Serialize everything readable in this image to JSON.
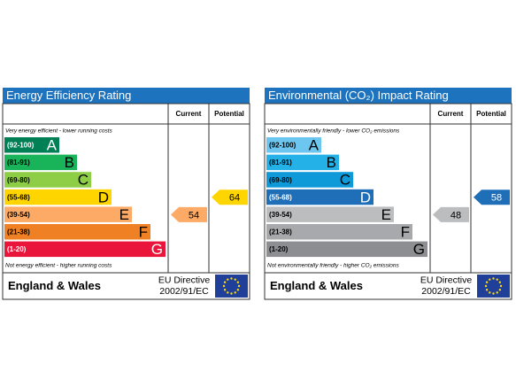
{
  "panels": [
    {
      "title": "Energy Efficiency Rating",
      "headers": [
        "Current",
        "Potential"
      ],
      "top_note": "Very energy efficient - lower running costs",
      "bottom_note": "Not energy efficient - higher running costs",
      "bands": [
        {
          "range": "(92-100)",
          "letter": "A",
          "color": "#008054"
        },
        {
          "range": "(81-91)",
          "letter": "B",
          "color": "#19b459"
        },
        {
          "range": "(69-80)",
          "letter": "C",
          "color": "#8dce46"
        },
        {
          "range": "(55-68)",
          "letter": "D",
          "color": "#ffd500"
        },
        {
          "range": "(39-54)",
          "letter": "E",
          "color": "#fcaa65"
        },
        {
          "range": "(21-38)",
          "letter": "F",
          "color": "#ef8023"
        },
        {
          "range": "(1-20)",
          "letter": "G",
          "color": "#e9153b"
        }
      ],
      "current": 54,
      "potential": 64,
      "footer": {
        "region": "England & Wales",
        "directive": [
          "EU Directive",
          "2002/91/EC"
        ]
      }
    },
    {
      "title": "Environmental (CO₂) Impact Rating",
      "headers": [
        "Current",
        "Potential"
      ],
      "top_note": "Very environmentally friendly - lower CO₂ emissions",
      "bottom_note": "Not environmentally friendly - higher CO₂ emissions",
      "bands": [
        {
          "range": "(92-100)",
          "letter": "A",
          "color": "#6dc6ef"
        },
        {
          "range": "(81-91)",
          "letter": "B",
          "color": "#23b1e8"
        },
        {
          "range": "(69-80)",
          "letter": "C",
          "color": "#0e9ad9"
        },
        {
          "range": "(55-68)",
          "letter": "D",
          "color": "#1f6fb8"
        },
        {
          "range": "(39-54)",
          "letter": "E",
          "color": "#bbbdbf"
        },
        {
          "range": "(21-38)",
          "letter": "F",
          "color": "#a7a9ac"
        },
        {
          "range": "(1-20)",
          "letter": "G",
          "color": "#8c8e91"
        }
      ],
      "current": 48,
      "potential": 58,
      "footer": {
        "region": "England & Wales",
        "directive": [
          "EU Directive",
          "2002/91/EC"
        ]
      }
    }
  ]
}
